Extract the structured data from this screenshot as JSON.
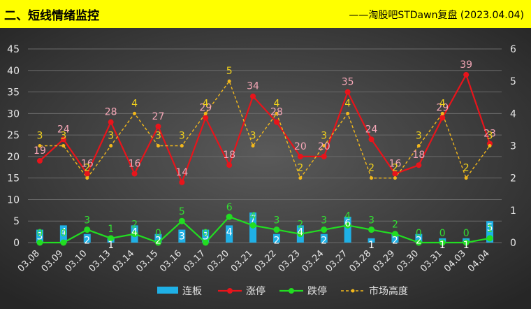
{
  "header": {
    "title": "二、短线情绪监控",
    "source": "——淘股吧STDawn复盘 (2023.04.04)"
  },
  "colors": {
    "header_bg": "#ffff00",
    "background": "#3a3a3a",
    "lianban": "#1fb0e6",
    "zhangting": "#e8141b",
    "dieting": "#22dd22",
    "gaodu": "#f2b81c",
    "zhangting_label": "#f4a6b6",
    "dieting_label": "#33dd33",
    "gaodu_label": "#f2d21c",
    "lianban_label": "#ffffff"
  },
  "chart_data": {
    "type": "bar",
    "categories": [
      "03.08",
      "03.09",
      "03.10",
      "03.13",
      "03.14",
      "03.15",
      "03.16",
      "03.17",
      "03.20",
      "03.21",
      "03.22",
      "03.23",
      "03.24",
      "03.27",
      "03.28",
      "03.29",
      "03.30",
      "03.31",
      "04.03",
      "04.04"
    ],
    "ylim": [
      0,
      45
    ],
    "yticks": [
      0,
      5,
      10,
      15,
      20,
      25,
      30,
      35,
      40,
      45
    ],
    "y2lim": [
      0,
      6
    ],
    "y2ticks": [
      0,
      1,
      2,
      3,
      4,
      5,
      6
    ],
    "grid": true,
    "legend_position": "bottom",
    "series": [
      {
        "name": "连板",
        "type": "bar",
        "axis": "left",
        "values": [
          3,
          4,
          2,
          1,
          4,
          2,
          3,
          3,
          4,
          7,
          2,
          4,
          2,
          6,
          1,
          2,
          2,
          1,
          1,
          5
        ]
      },
      {
        "name": "涨停",
        "type": "line",
        "axis": "left",
        "values": [
          19,
          24,
          16,
          28,
          16,
          27,
          14,
          29,
          18,
          34,
          28,
          20,
          20,
          35,
          24,
          16,
          18,
          29,
          39,
          23
        ]
      },
      {
        "name": "跌停",
        "type": "line",
        "axis": "left",
        "values": [
          0,
          0,
          3,
          1,
          2,
          0,
          5,
          0,
          6,
          4,
          3,
          2,
          3,
          4,
          3,
          2,
          0,
          0,
          0,
          1
        ]
      },
      {
        "name": "市场高度",
        "type": "line",
        "dashed": true,
        "axis": "right",
        "values": [
          3,
          3,
          2,
          3,
          4,
          3,
          3,
          4,
          5,
          3,
          4,
          2,
          3,
          4,
          2,
          2,
          3,
          4,
          2,
          3
        ]
      }
    ]
  }
}
